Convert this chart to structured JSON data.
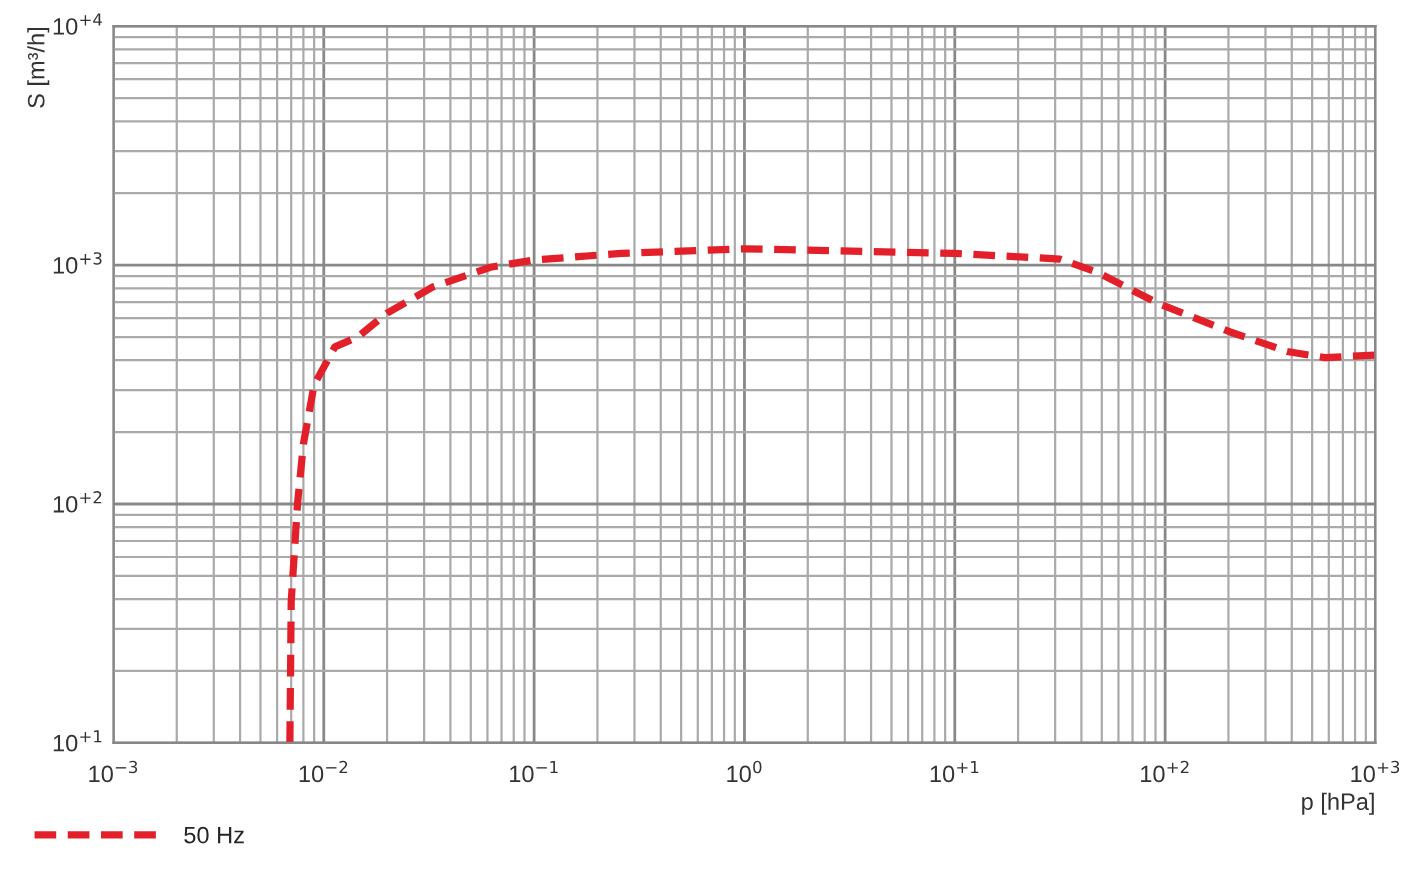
{
  "chart_data": {
    "type": "line",
    "xlabel": "p [hPa]",
    "ylabel": "S [m³/h]",
    "log": "xy",
    "x": [
      0.0069,
      0.007,
      0.0075,
      0.008,
      0.009,
      0.0113,
      0.0145,
      0.02,
      0.033,
      0.062,
      0.1,
      0.26,
      1,
      10,
      31.6,
      48,
      93,
      204,
      380,
      575,
      1000
    ],
    "series": [
      {
        "name": "50 Hz",
        "color": "#e3202a",
        "values": [
          10,
          39,
          100,
          178,
          316,
          455,
          500,
          630,
          810,
          980,
          1050,
          1120,
          1170,
          1120,
          1060,
          930,
          690,
          525,
          435,
          410,
          420
        ]
      }
    ],
    "xlim": [
      0.001,
      1000
    ],
    "ylim": [
      10,
      10000
    ],
    "xticks": [
      {
        "value": 0.001,
        "label": "10$^{−3}$"
      },
      {
        "value": 0.01,
        "label": "10$^{−2}$"
      },
      {
        "value": 0.1,
        "label": "10$^{−1}$"
      },
      {
        "value": 1,
        "label": "10$^{0}$"
      },
      {
        "value": 10,
        "label": "10$^{+1}$"
      },
      {
        "value": 100,
        "label": "10$^{+2}$"
      },
      {
        "value": 1000,
        "label": "10$^{+3}$"
      }
    ],
    "yticks": [
      {
        "value": 10,
        "label": "10$^{+1}$"
      },
      {
        "value": 100,
        "label": "10$^{+2}$"
      },
      {
        "value": 1000,
        "label": "10$^{+3}$"
      },
      {
        "value": 10000,
        "label": "10$^{+4}$"
      }
    ],
    "grid": true,
    "legend": "bottom left",
    "line_style": "dashed",
    "marker": "none"
  }
}
